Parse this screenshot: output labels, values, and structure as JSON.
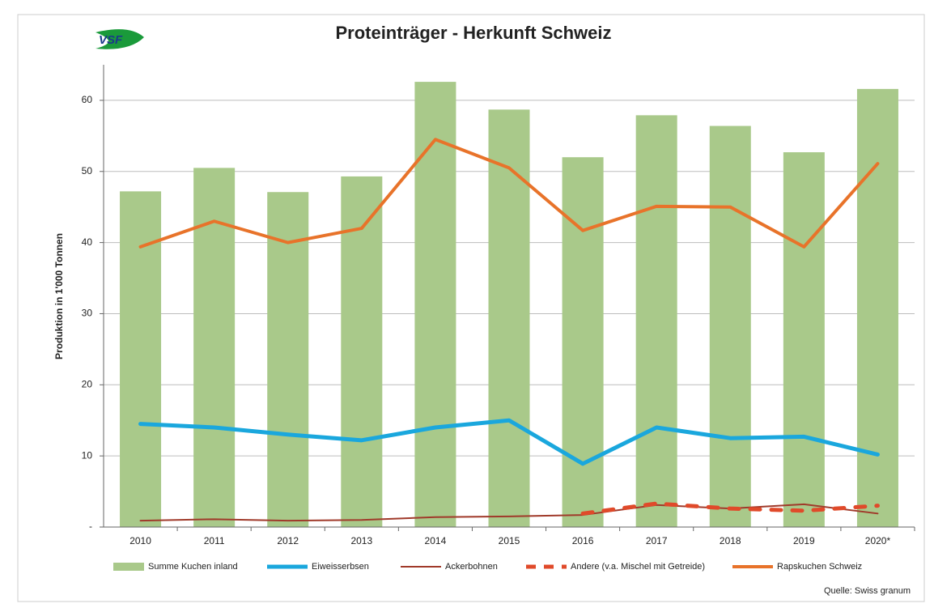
{
  "logo": "VSF",
  "chart_data": {
    "type": "combo",
    "title": "Proteinträger - Herkunft Schweiz",
    "y_label": "Produktion in 1'000 Tonnen",
    "source": "Quelle: Swiss granum",
    "categories": [
      "2010",
      "2011",
      "2012",
      "2013",
      "2014",
      "2015",
      "2016",
      "2017",
      "2018",
      "2019",
      "2020*"
    ],
    "ylim": [
      0,
      65
    ],
    "yticks": [
      {
        "value": 0,
        "label": "-"
      },
      10,
      20,
      30,
      40,
      50,
      60
    ],
    "grid": true,
    "legend": "bottom",
    "series": [
      {
        "name": "Summe Kuchen inland",
        "type": "bar",
        "color": "#a9c98a",
        "values": [
          47.2,
          50.5,
          47.1,
          49.3,
          62.6,
          58.7,
          52.0,
          57.9,
          56.4,
          52.7,
          61.6
        ]
      },
      {
        "name": "Eiweisserbsen",
        "type": "line",
        "color": "#1aa7dd",
        "values": [
          14.5,
          14.0,
          13.0,
          12.2,
          14.0,
          15.0,
          8.9,
          14.0,
          12.5,
          12.7,
          10.2
        ]
      },
      {
        "name": "Ackerbohnen",
        "type": "line",
        "color": "#a03a2a",
        "values": [
          0.9,
          1.1,
          0.9,
          1.0,
          1.4,
          1.5,
          1.7,
          3.1,
          2.6,
          3.2,
          1.9
        ]
      },
      {
        "name": "Andere (v.a. Mischel mit Getreide)",
        "type": "line",
        "color": "#e04a2a",
        "line_style": "dashed",
        "values": [
          null,
          null,
          null,
          null,
          null,
          null,
          1.9,
          3.3,
          2.6,
          2.3,
          3.0
        ]
      },
      {
        "name": "Rapskuchen Schweiz",
        "type": "line",
        "color": "#e8732a",
        "values": [
          39.4,
          43.0,
          40.0,
          42.0,
          54.5,
          50.5,
          41.7,
          45.1,
          45.0,
          39.4,
          51.1
        ]
      }
    ]
  }
}
